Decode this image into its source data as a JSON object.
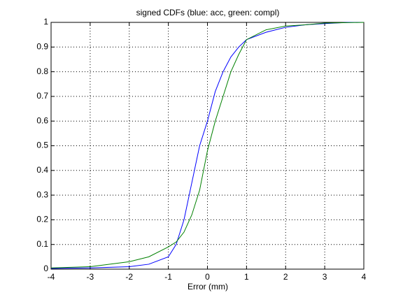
{
  "chart_data": {
    "type": "line",
    "title": "signed CDFs (blue: acc, green: compl)",
    "x_label": "Error (mm)",
    "x": [
      -4,
      -3,
      -2,
      -1.5,
      -1,
      -0.8,
      -0.6,
      -0.4,
      -0.2,
      0,
      0.2,
      0.4,
      0.6,
      0.8,
      1,
      1.5,
      2,
      2.5,
      3,
      3.6,
      4
    ],
    "series": [
      {
        "color": "#0000ff",
        "values": [
          0.003,
          0.005,
          0.01,
          0.02,
          0.05,
          0.1,
          0.2,
          0.35,
          0.5,
          0.6,
          0.72,
          0.8,
          0.86,
          0.9,
          0.93,
          0.96,
          0.98,
          0.99,
          0.995,
          1,
          1
        ]
      },
      {
        "color": "#008000",
        "values": [
          0.005,
          0.01,
          0.03,
          0.05,
          0.09,
          0.11,
          0.15,
          0.22,
          0.32,
          0.48,
          0.6,
          0.7,
          0.8,
          0.87,
          0.93,
          0.97,
          0.985,
          0.99,
          0.997,
          0.999,
          1
        ]
      }
    ],
    "xlim": [
      -4,
      4
    ],
    "xticks": [
      -4,
      -3,
      -2,
      -1,
      0,
      1,
      2,
      3,
      4
    ],
    "ylim": [
      0,
      1
    ],
    "yticks": [
      0,
      0.1,
      0.2,
      0.3,
      0.4,
      0.5,
      0.6,
      0.7,
      0.8,
      0.9,
      1
    ],
    "grid": true
  }
}
